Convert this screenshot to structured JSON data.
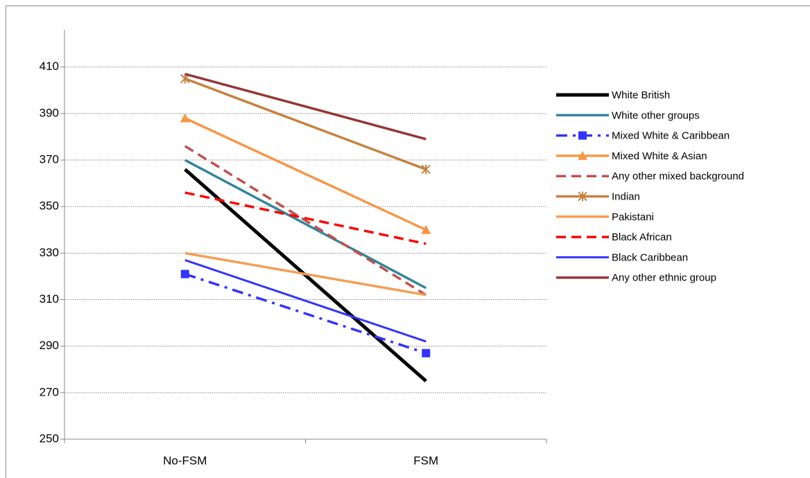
{
  "chart_data": {
    "type": "line",
    "categories": [
      "No-FSM",
      "FSM"
    ],
    "ylim": [
      250,
      426
    ],
    "yticks": [
      250,
      270,
      290,
      310,
      330,
      350,
      370,
      390,
      410
    ],
    "grid": true,
    "legend": "right",
    "series": [
      {
        "name": "White British",
        "color": "#000000",
        "width": 5,
        "dash": "solid",
        "marker": "none",
        "values": [
          366,
          275
        ]
      },
      {
        "name": "White other groups",
        "color": "#31859c",
        "width": 3.5,
        "dash": "solid",
        "marker": "none",
        "values": [
          370,
          315
        ]
      },
      {
        "name": "Mixed White & Caribbean",
        "color": "#3333ff",
        "width": 3.5,
        "dash": "dashdot",
        "marker": "square",
        "values": [
          321,
          287
        ]
      },
      {
        "name": "Mixed White & Asian",
        "color": "#f79646",
        "width": 3.5,
        "dash": "solid",
        "marker": "triangle",
        "values": [
          388,
          340
        ]
      },
      {
        "name": "Any other mixed background",
        "color": "#c0504d",
        "width": 3.5,
        "dash": "dashed",
        "marker": "none",
        "values": [
          376,
          312
        ]
      },
      {
        "name": "Indian",
        "color": "#c8803e",
        "width": 3.5,
        "dash": "solid",
        "marker": "asterisk",
        "values": [
          405,
          366
        ]
      },
      {
        "name": "Pakistani",
        "color": "#f59d52",
        "width": 3.5,
        "dash": "solid",
        "marker": "none",
        "values": [
          330,
          312
        ]
      },
      {
        "name": "Black African",
        "color": "#ff0000",
        "width": 3.5,
        "dash": "dashed",
        "marker": "none",
        "values": [
          356,
          334
        ]
      },
      {
        "name": "Black Caribbean",
        "color": "#3333ff",
        "width": 3,
        "dash": "solid",
        "marker": "none",
        "values": [
          327,
          292
        ]
      },
      {
        "name": "Any other ethnic group",
        "color": "#953735",
        "width": 3.5,
        "dash": "solid",
        "marker": "none",
        "values": [
          407,
          379
        ]
      }
    ]
  }
}
